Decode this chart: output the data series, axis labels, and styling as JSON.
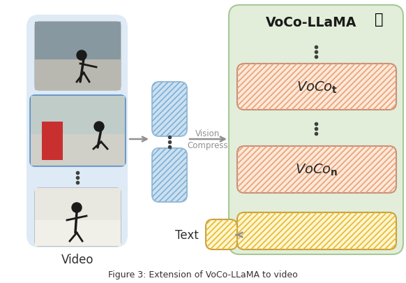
{
  "voco_llama_label": "VoCo-LLaMA",
  "video_label": "Video",
  "text_label": "Text",
  "vision_compress_label": "Vision\nCompress",
  "bg_video_color": "#deeaf5",
  "bg_llama_color": "#e2eed9",
  "bg_llama_border": "#a8c896",
  "blue_box_color": "#cce0f0",
  "blue_box_border": "#9bbdd8",
  "blue_frame_border": "#5b8fc7",
  "orange_hatch_color": "#f0a878",
  "orange_hatch_bg": "#fde8d8",
  "orange_border": "#c8907a",
  "yellow_hatch_color": "#f0c030",
  "yellow_hatch_bg": "#fef6d0",
  "yellow_border": "#c8a040",
  "arrow_color": "#909090",
  "label_color": "#303030",
  "dots_color": "#404040",
  "caption": "Figure 3: Extension of VoCo-LLaMA to video"
}
